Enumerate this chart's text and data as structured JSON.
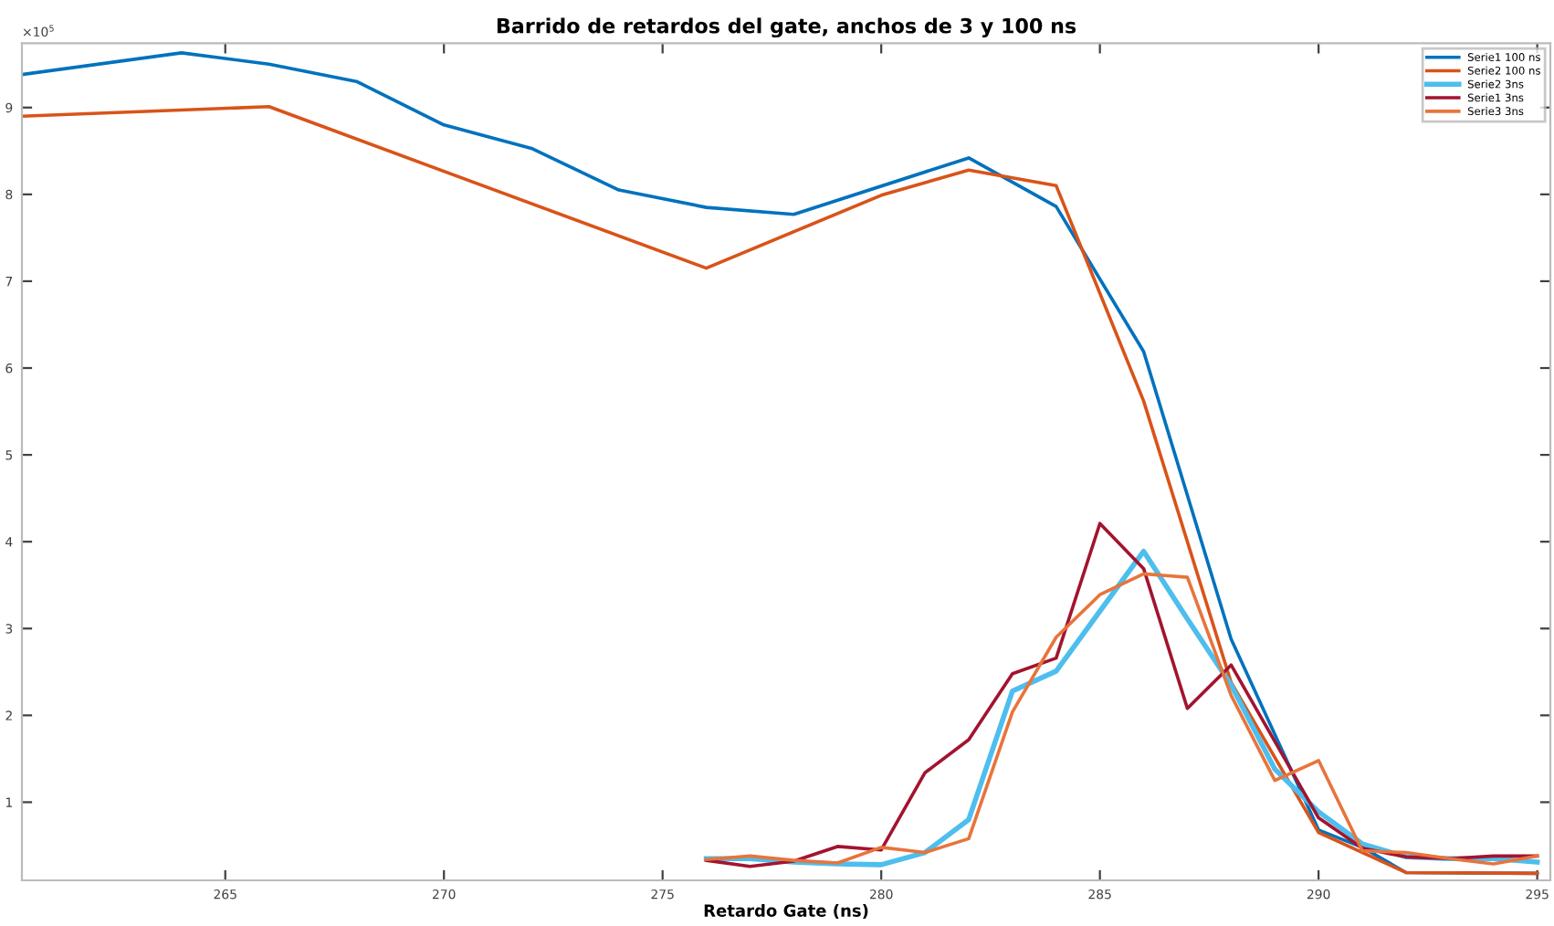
{
  "chart_data": {
    "type": "line",
    "title": "Barrido de retardos del gate, anchos de 3 y 100 ns",
    "xlabel": "Retardo Gate (ns)",
    "annotations": [
      "×10$^{5}$"
    ],
    "xlim": [
      260.35,
      295.3
    ],
    "xticks": [
      265,
      270,
      275,
      280,
      285,
      290,
      295
    ],
    "ylim": [
      0.1,
      9.74
    ],
    "yticks": [
      1,
      2,
      3,
      4,
      5,
      6,
      7,
      8,
      9
    ],
    "grid": false,
    "legend": "top right",
    "line_style": "solid",
    "marker": "none",
    "series": [
      {
        "name": "Serie1 100 ns",
        "color": "#0072bd",
        "x": [
          260.35,
          264,
          266,
          268,
          270,
          272,
          274,
          276,
          278,
          282,
          284,
          286,
          288,
          290,
          291,
          292,
          295
        ],
        "values": [
          9.38,
          9.63,
          9.5,
          9.3,
          8.8,
          8.53,
          8.05,
          7.85,
          7.77,
          8.42,
          7.86,
          6.19,
          2.88,
          0.68,
          0.48,
          0.19,
          0.18
        ]
      },
      {
        "name": "Serie2 100 ns",
        "color": "#d95319",
        "x": [
          260.35,
          266,
          276,
          280,
          282,
          284,
          286,
          288,
          290,
          292,
          295
        ],
        "values": [
          8.9,
          9.01,
          7.15,
          7.99,
          8.28,
          8.1,
          5.62,
          2.38,
          0.65,
          0.19,
          0.18
        ]
      },
      {
        "name": "Serie2 3ns",
        "color": "#4dbeee",
        "x": [
          276,
          277,
          278,
          279,
          280,
          281,
          282,
          283,
          284,
          285,
          286,
          287,
          288,
          289,
          290,
          291,
          292,
          293,
          294,
          295
        ],
        "values": [
          0.35,
          0.35,
          0.31,
          0.29,
          0.28,
          0.42,
          0.8,
          2.28,
          2.51,
          3.2,
          3.89,
          3.11,
          2.35,
          1.38,
          0.89,
          0.52,
          0.37,
          0.35,
          0.35,
          0.31
        ]
      },
      {
        "name": "Serie1 3ns",
        "color": "#a2142f",
        "x": [
          276,
          277,
          278,
          279,
          280,
          281,
          282,
          283,
          284,
          285,
          286,
          287,
          288,
          289,
          290,
          291,
          292,
          293,
          294,
          295
        ],
        "values": [
          0.33,
          0.26,
          0.32,
          0.49,
          0.45,
          1.34,
          1.72,
          2.48,
          2.66,
          4.21,
          3.69,
          2.08,
          2.58,
          1.7,
          0.82,
          0.47,
          0.37,
          0.35,
          0.38,
          0.38
        ]
      },
      {
        "name": "Serie3 3ns",
        "color": "#e8743b",
        "x": [
          276,
          277,
          278,
          279,
          280,
          281,
          282,
          283,
          284,
          285,
          286,
          287,
          288,
          289,
          290,
          291,
          292,
          293,
          294,
          295
        ],
        "values": [
          0.34,
          0.38,
          0.33,
          0.3,
          0.48,
          0.42,
          0.58,
          2.04,
          2.9,
          3.39,
          3.63,
          3.59,
          2.23,
          1.25,
          1.48,
          0.44,
          0.42,
          0.35,
          0.29,
          0.38
        ]
      }
    ]
  }
}
